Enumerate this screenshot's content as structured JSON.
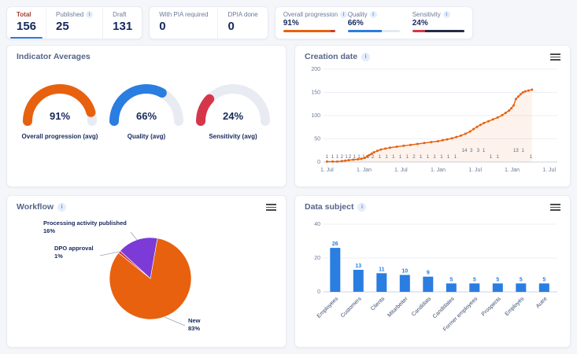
{
  "icons": {
    "info_glyph": "i"
  },
  "colors": {
    "orange": "#E8610E",
    "blue": "#2A7DE1",
    "red": "#D63649",
    "purple": "#7C3BD6",
    "navy": "#16295C"
  },
  "stats": {
    "card1": [
      {
        "label": "Total",
        "value": "156",
        "active": true
      },
      {
        "label": "Published",
        "value": "25",
        "info": true
      },
      {
        "label": "Draft",
        "value": "131"
      }
    ],
    "card2": [
      {
        "label": "With PIA required",
        "value": "0"
      },
      {
        "label": "DPIA done",
        "value": "0"
      }
    ],
    "card3": [
      {
        "label": "Overall progression",
        "value": "91%",
        "pct": 91,
        "color": "#E8610E",
        "rest": "#C4402E"
      },
      {
        "label": "Quality",
        "value": "66%",
        "pct": 66,
        "color": "#2A7DE1",
        "rest": "#E4E8F0"
      },
      {
        "label": "Sensitivity",
        "value": "24%",
        "pct": 24,
        "color": "#D63649",
        "rest": "#232B49"
      }
    ]
  },
  "panels": {
    "indicators": {
      "title": "Indicator Averages"
    },
    "creation": {
      "title": "Creation date"
    },
    "workflow": {
      "title": "Workflow"
    },
    "data_subject": {
      "title": "Data subject"
    }
  },
  "chart_data": [
    {
      "id": "gauges",
      "type": "gauge",
      "items": [
        {
          "value": 91,
          "display": "91%",
          "label": "Overall progression (avg)",
          "color": "#E8610E"
        },
        {
          "value": 66,
          "display": "66%",
          "label": "Quality (avg)",
          "color": "#2A7DE1"
        },
        {
          "value": 24,
          "display": "24%",
          "label": "Sensitivity (avg)",
          "color": "#D63649"
        }
      ]
    },
    {
      "id": "creation",
      "type": "line",
      "title": "Creation date",
      "color": "#E8610E",
      "ylim": [
        0,
        200
      ],
      "yticks": [
        0,
        50,
        100,
        150,
        200
      ],
      "xticks": [
        [
          0.015,
          "1. Jul"
        ],
        [
          0.177,
          "1. Jan"
        ],
        [
          0.338,
          "1. Jul"
        ],
        [
          0.5,
          "1. Jan"
        ],
        [
          0.662,
          "1. Jul"
        ],
        [
          0.823,
          "1. Jan"
        ],
        [
          0.985,
          "1. Jul"
        ]
      ],
      "points": [
        [
          0.015,
          1
        ],
        [
          0.04,
          1
        ],
        [
          0.06,
          1
        ],
        [
          0.08,
          2
        ],
        [
          0.095,
          3
        ],
        [
          0.11,
          4
        ],
        [
          0.13,
          5
        ],
        [
          0.15,
          6
        ],
        [
          0.165,
          7
        ],
        [
          0.18,
          9
        ],
        [
          0.19,
          12
        ],
        [
          0.2,
          15
        ],
        [
          0.21,
          18
        ],
        [
          0.22,
          21
        ],
        [
          0.235,
          24
        ],
        [
          0.25,
          27
        ],
        [
          0.27,
          29
        ],
        [
          0.29,
          31
        ],
        [
          0.32,
          33
        ],
        [
          0.35,
          35
        ],
        [
          0.38,
          37
        ],
        [
          0.41,
          39
        ],
        [
          0.44,
          41
        ],
        [
          0.47,
          43
        ],
        [
          0.5,
          45
        ],
        [
          0.52,
          47
        ],
        [
          0.54,
          49
        ],
        [
          0.56,
          51
        ],
        [
          0.58,
          54
        ],
        [
          0.6,
          57
        ],
        [
          0.62,
          61
        ],
        [
          0.64,
          66
        ],
        [
          0.655,
          71
        ],
        [
          0.67,
          76
        ],
        [
          0.685,
          80
        ],
        [
          0.7,
          84
        ],
        [
          0.72,
          88
        ],
        [
          0.74,
          92
        ],
        [
          0.76,
          96
        ],
        [
          0.78,
          101
        ],
        [
          0.795,
          106
        ],
        [
          0.81,
          111
        ],
        [
          0.82,
          116
        ],
        [
          0.83,
          122
        ],
        [
          0.84,
          136
        ],
        [
          0.85,
          141
        ],
        [
          0.86,
          146
        ],
        [
          0.87,
          150
        ],
        [
          0.88,
          152
        ],
        [
          0.895,
          154
        ],
        [
          0.91,
          156
        ]
      ],
      "point_labels": [
        [
          0.015,
          "1",
          0
        ],
        [
          0.04,
          "1",
          0
        ],
        [
          0.06,
          "1",
          0
        ],
        [
          0.08,
          "2",
          0
        ],
        [
          0.1,
          "1",
          0
        ],
        [
          0.115,
          "2",
          0
        ],
        [
          0.135,
          "1",
          0
        ],
        [
          0.155,
          "1",
          0
        ],
        [
          0.175,
          "1",
          0
        ],
        [
          0.195,
          "1",
          0
        ],
        [
          0.215,
          "2",
          0
        ],
        [
          0.245,
          "1",
          0
        ],
        [
          0.275,
          "1",
          0
        ],
        [
          0.305,
          "1",
          0
        ],
        [
          0.335,
          "1",
          0
        ],
        [
          0.365,
          "1",
          0
        ],
        [
          0.395,
          "2",
          0
        ],
        [
          0.425,
          "1",
          0
        ],
        [
          0.455,
          "1",
          0
        ],
        [
          0.485,
          "1",
          0
        ],
        [
          0.515,
          "1",
          0
        ],
        [
          0.545,
          "1",
          0
        ],
        [
          0.575,
          "1",
          0
        ],
        [
          0.615,
          "14",
          1
        ],
        [
          0.645,
          "3",
          1
        ],
        [
          0.675,
          "3",
          1
        ],
        [
          0.7,
          "1",
          1
        ],
        [
          0.73,
          "1",
          0
        ],
        [
          0.76,
          "1",
          0
        ],
        [
          0.84,
          "13",
          1
        ],
        [
          0.87,
          "1",
          1
        ],
        [
          0.905,
          "1",
          0
        ]
      ]
    },
    {
      "id": "workflow",
      "type": "pie",
      "start_deg": 10,
      "slices": [
        {
          "label": "New",
          "pct": 83,
          "pct_display": "83%",
          "color": "#E8610E"
        },
        {
          "label": "DPO approval",
          "pct": 1,
          "pct_display": "1%",
          "color": "#D63649"
        },
        {
          "label": "Processing activity published",
          "pct": 16,
          "pct_display": "16%",
          "color": "#7C3BD6"
        }
      ]
    },
    {
      "id": "data_subject",
      "type": "bar",
      "color": "#2A7DE1",
      "categories": [
        "Employees",
        "Customers",
        "Clients",
        "Mitarbeiter",
        "Candidats",
        "Candidates",
        "Former employees",
        "Prospects",
        "Employés",
        "Autre"
      ],
      "values": [
        26,
        13,
        11,
        10,
        9,
        5,
        5,
        5,
        5,
        5
      ],
      "ylim": [
        0,
        40
      ],
      "yticks": [
        0,
        20,
        40
      ]
    }
  ]
}
